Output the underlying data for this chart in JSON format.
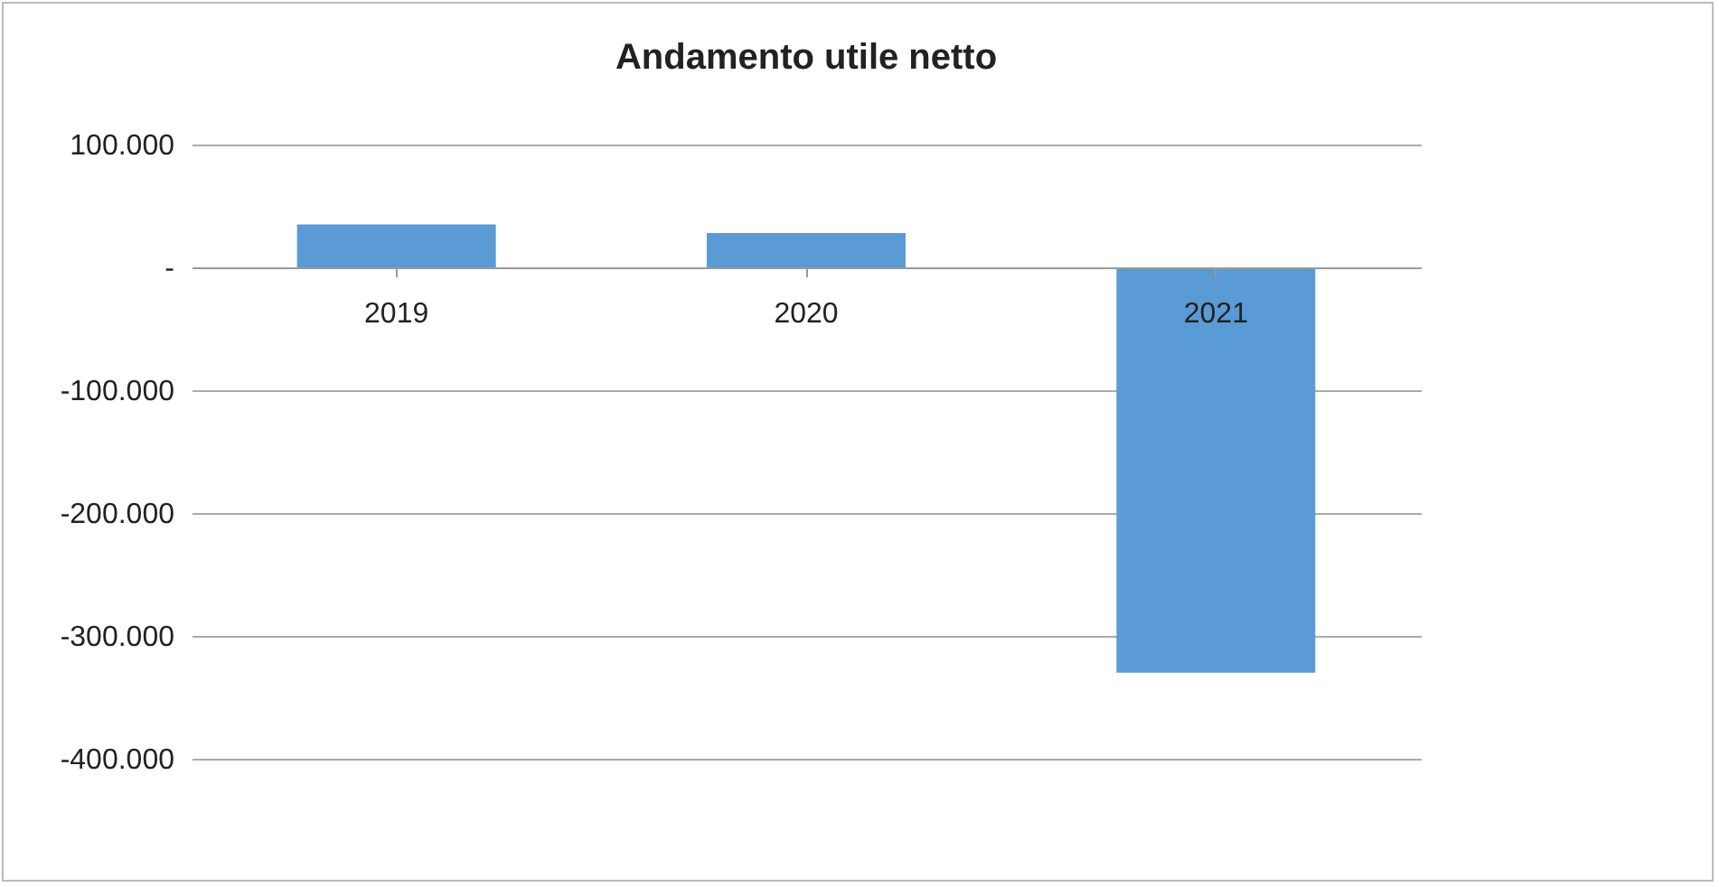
{
  "chart_data": {
    "type": "bar",
    "title": "Andamento utile netto",
    "categories": [
      "2019",
      "2020",
      "2021"
    ],
    "values": [
      35000,
      28000,
      -330000
    ],
    "color": "#5b9bd5",
    "ylim": [
      -400000,
      100000
    ],
    "yticks": [
      {
        "value": 100000,
        "label": "100.000"
      },
      {
        "value": 0,
        "label": "-"
      },
      {
        "value": -100000,
        "label": "-100.000"
      },
      {
        "value": -200000,
        "label": "-200.000"
      },
      {
        "value": -300000,
        "label": "-300.000"
      },
      {
        "value": -400000,
        "label": "-400.000"
      }
    ],
    "grid": "y"
  }
}
